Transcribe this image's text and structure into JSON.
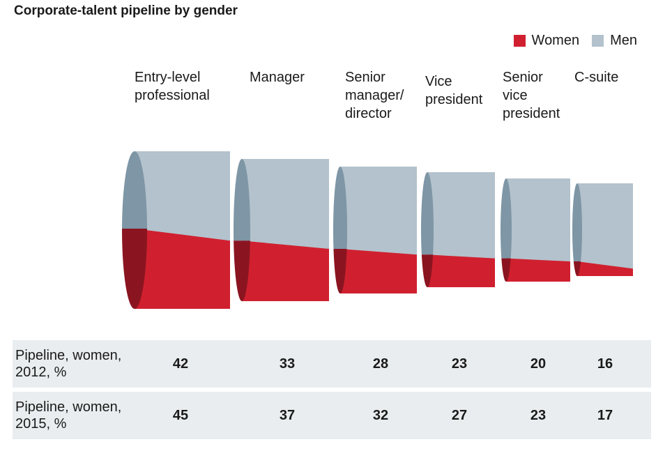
{
  "chart_data": {
    "type": "bar",
    "title": "Corporate-talent pipeline by gender",
    "categories": [
      "Entry-level\nprofessional",
      "Manager",
      "Senior\nmanager/\ndirector",
      "Vice\npresident",
      "Senior\nvice\npresident",
      "C-suite"
    ],
    "series": [
      {
        "name": "Women",
        "row_label": "Pipeline, women,\n2012, %",
        "values": [
          42,
          33,
          28,
          23,
          20,
          16
        ]
      },
      {
        "name": "Women",
        "row_label": "Pipeline, women,\n2015, %",
        "values": [
          45,
          37,
          32,
          27,
          23,
          17
        ]
      }
    ],
    "legend": {
      "position": "top-right",
      "items": [
        {
          "label": "Women",
          "color": "#d0202f"
        },
        {
          "label": "Men",
          "color": "#b3c2cc"
        }
      ]
    },
    "colors": {
      "women": "#d0202f",
      "women_dark": "#8a1520",
      "men": "#b3c2cc",
      "men_dark": "#7e96a5"
    }
  }
}
